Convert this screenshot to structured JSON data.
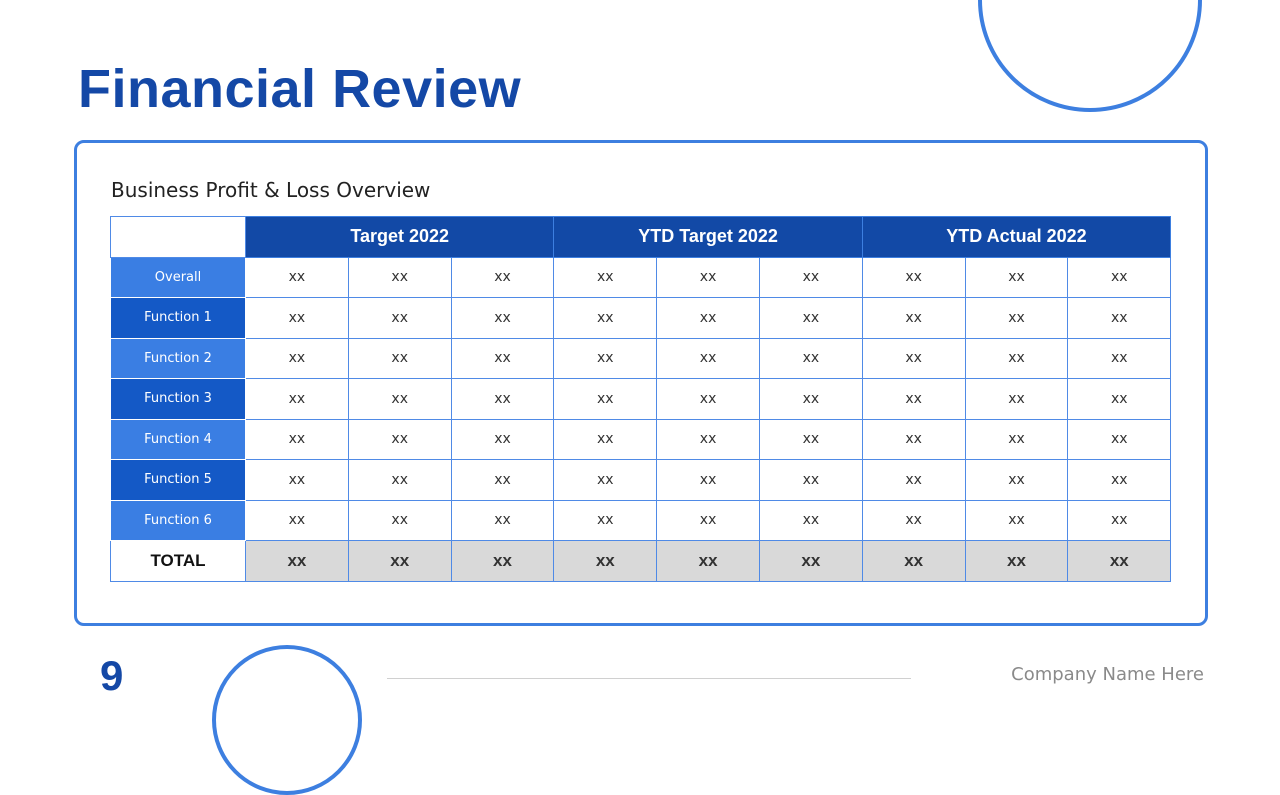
{
  "title": "Financial Review",
  "subtitle": "Business Profit & Loss Overview",
  "table": {
    "groups": [
      "Target 2022",
      "YTD Target  2022",
      "YTD Actual 2022"
    ],
    "rows": [
      {
        "label": "Overall",
        "values": [
          "xx",
          "xx",
          "xx",
          "xx",
          "xx",
          "xx",
          "xx",
          "xx",
          "xx"
        ]
      },
      {
        "label": "Function 1",
        "values": [
          "xx",
          "xx",
          "xx",
          "xx",
          "xx",
          "xx",
          "xx",
          "xx",
          "xx"
        ]
      },
      {
        "label": "Function 2",
        "values": [
          "xx",
          "xx",
          "xx",
          "xx",
          "xx",
          "xx",
          "xx",
          "xx",
          "xx"
        ]
      },
      {
        "label": "Function 3",
        "values": [
          "xx",
          "xx",
          "xx",
          "xx",
          "xx",
          "xx",
          "xx",
          "xx",
          "xx"
        ]
      },
      {
        "label": "Function 4",
        "values": [
          "xx",
          "xx",
          "xx",
          "xx",
          "xx",
          "xx",
          "xx",
          "xx",
          "xx"
        ]
      },
      {
        "label": "Function 5",
        "values": [
          "xx",
          "xx",
          "xx",
          "xx",
          "xx",
          "xx",
          "xx",
          "xx",
          "xx"
        ]
      },
      {
        "label": "Function 6",
        "values": [
          "xx",
          "xx",
          "xx",
          "xx",
          "xx",
          "xx",
          "xx",
          "xx",
          "xx"
        ]
      }
    ],
    "total": {
      "label": "TOTAL",
      "values": [
        "xx",
        "xx",
        "xx",
        "xx",
        "xx",
        "xx",
        "xx",
        "xx",
        "xx"
      ]
    }
  },
  "footer": {
    "page_number": "9",
    "company": "Company Name Here"
  },
  "colors": {
    "brand_dark": "#1448a6",
    "accent": "#3d7fe0",
    "row_light": "#3a7ee3",
    "row_dark": "#1459c6",
    "total_fill": "#d9d9d9"
  }
}
